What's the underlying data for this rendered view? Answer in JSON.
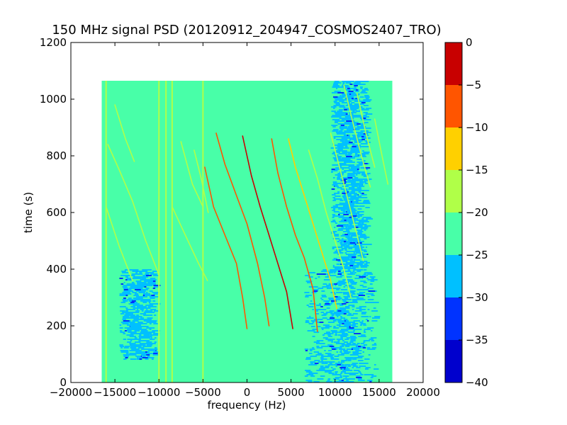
{
  "chart_data": {
    "type": "heatmap",
    "title": "150 MHz signal PSD (20120912_204947_COSMOS2407_TRO)",
    "xlabel": "frequency (Hz)",
    "ylabel": "time (s)",
    "xlim": [
      -20000,
      20000
    ],
    "ylim": [
      0,
      1200
    ],
    "x_ticks": [
      "−20000",
      "−15000",
      "−10000",
      "−5000",
      "0",
      "5000",
      "10000",
      "15000",
      "20000"
    ],
    "x_tick_values": [
      -20000,
      -15000,
      -10000,
      -5000,
      0,
      5000,
      10000,
      15000,
      20000
    ],
    "y_ticks": [
      "0",
      "200",
      "400",
      "600",
      "800",
      "1000",
      "1200"
    ],
    "y_tick_values": [
      0,
      200,
      400,
      600,
      800,
      1000,
      1200
    ],
    "data_extent": {
      "x": [
        -16500,
        16500
      ],
      "y": [
        0,
        1065
      ]
    },
    "colorbar": {
      "levels": [
        -40,
        -35,
        -30,
        -25,
        -20,
        -15,
        -10,
        -5,
        0
      ],
      "tick_labels": [
        "−40",
        "−35",
        "−30",
        "−25",
        "−20",
        "−15",
        "−10",
        "−5",
        "0"
      ],
      "colors": [
        "#0000cd",
        "#0033ff",
        "#00c0ff",
        "#48ffa8",
        "#b0ff48",
        "#ffd000",
        "#ff5500",
        "#c80000"
      ]
    },
    "background_level_color": "#48ffa8",
    "low_regions": [
      {
        "x": [
          -14500,
          -10500
        ],
        "y": [
          80,
          400
        ]
      },
      {
        "x": [
          6500,
          14500
        ],
        "y": [
          0,
          400
        ]
      },
      {
        "x": [
          9500,
          13500
        ],
        "y": [
          400,
          1065
        ]
      }
    ],
    "vertical_lines": [
      {
        "x": -16000,
        "y": [
          0,
          1065
        ],
        "level": "#b0ff48"
      },
      {
        "x": -10000,
        "y": [
          0,
          1065
        ],
        "level": "#b0ff48"
      },
      {
        "x": -9200,
        "y": [
          0,
          1065
        ],
        "level": "#b0ff48"
      },
      {
        "x": -8500,
        "y": [
          0,
          1065
        ],
        "level": "#b0ff48"
      },
      {
        "x": -5000,
        "y": [
          0,
          1065
        ],
        "level": "#b0ff48"
      }
    ],
    "traces": [
      {
        "points": [
          [
            -15800,
            840
          ],
          [
            -14500,
            750
          ],
          [
            -13000,
            640
          ],
          [
            -11500,
            500
          ],
          [
            -10000,
            380
          ]
        ],
        "level": "#b0ff48"
      },
      {
        "points": [
          [
            -16000,
            620
          ],
          [
            -14500,
            480
          ],
          [
            -13000,
            360
          ]
        ],
        "level": "#b0ff48"
      },
      {
        "points": [
          [
            -15000,
            980
          ],
          [
            -13800,
            860
          ],
          [
            -12800,
            780
          ]
        ],
        "level": "#b0ff48"
      },
      {
        "points": [
          [
            -8500,
            620
          ],
          [
            -7000,
            520
          ],
          [
            -5500,
            420
          ],
          [
            -4500,
            360
          ]
        ],
        "level": "#b0ff48"
      },
      {
        "points": [
          [
            -7500,
            850
          ],
          [
            -6200,
            700
          ],
          [
            -5000,
            620
          ]
        ],
        "level": "#b0ff48"
      },
      {
        "points": [
          [
            -6000,
            820
          ],
          [
            -5200,
            720
          ],
          [
            -4400,
            600
          ]
        ],
        "level": "#b0ff48"
      },
      {
        "points": [
          [
            -4800,
            760
          ],
          [
            -3800,
            620
          ],
          [
            -2500,
            520
          ],
          [
            -1200,
            420
          ],
          [
            -500,
            300
          ],
          [
            0,
            190
          ]
        ],
        "level": "#ff5500"
      },
      {
        "points": [
          [
            -3500,
            880
          ],
          [
            -2500,
            770
          ],
          [
            -1200,
            660
          ],
          [
            0,
            560
          ],
          [
            1200,
            420
          ],
          [
            2000,
            300
          ],
          [
            2500,
            200
          ]
        ],
        "level": "#ff5500"
      },
      {
        "points": [
          [
            -500,
            870
          ],
          [
            500,
            730
          ],
          [
            1500,
            620
          ],
          [
            2500,
            520
          ],
          [
            3500,
            420
          ],
          [
            4500,
            320
          ],
          [
            5200,
            190
          ]
        ],
        "level": "#c80000"
      },
      {
        "points": [
          [
            2800,
            860
          ],
          [
            3500,
            740
          ],
          [
            4500,
            620
          ],
          [
            5500,
            520
          ],
          [
            6500,
            440
          ],
          [
            7500,
            330
          ],
          [
            8000,
            180
          ]
        ],
        "level": "#ff5500"
      },
      {
        "points": [
          [
            4700,
            860
          ],
          [
            5500,
            760
          ],
          [
            6500,
            660
          ],
          [
            7500,
            560
          ],
          [
            8500,
            460
          ],
          [
            9500,
            360
          ],
          [
            10200,
            260
          ]
        ],
        "level": "#ffd000"
      },
      {
        "points": [
          [
            7000,
            820
          ],
          [
            8000,
            720
          ],
          [
            9000,
            600
          ],
          [
            10000,
            500
          ],
          [
            11000,
            400
          ],
          [
            11800,
            300
          ]
        ],
        "level": "#b0ff48"
      },
      {
        "points": [
          [
            9500,
            880
          ],
          [
            10500,
            760
          ],
          [
            11500,
            640
          ],
          [
            12500,
            520
          ],
          [
            13200,
            430
          ]
        ],
        "level": "#b0ff48"
      },
      {
        "points": [
          [
            11000,
            1050
          ],
          [
            12000,
            920
          ],
          [
            13000,
            800
          ],
          [
            14000,
            690
          ]
        ],
        "level": "#b0ff48"
      },
      {
        "points": [
          [
            14500,
            930
          ],
          [
            15200,
            820
          ],
          [
            16000,
            700
          ]
        ],
        "level": "#b0ff48"
      },
      {
        "points": [
          [
            12500,
            1020
          ],
          [
            13500,
            880
          ],
          [
            14500,
            760
          ]
        ],
        "level": "#b0ff48"
      }
    ]
  }
}
